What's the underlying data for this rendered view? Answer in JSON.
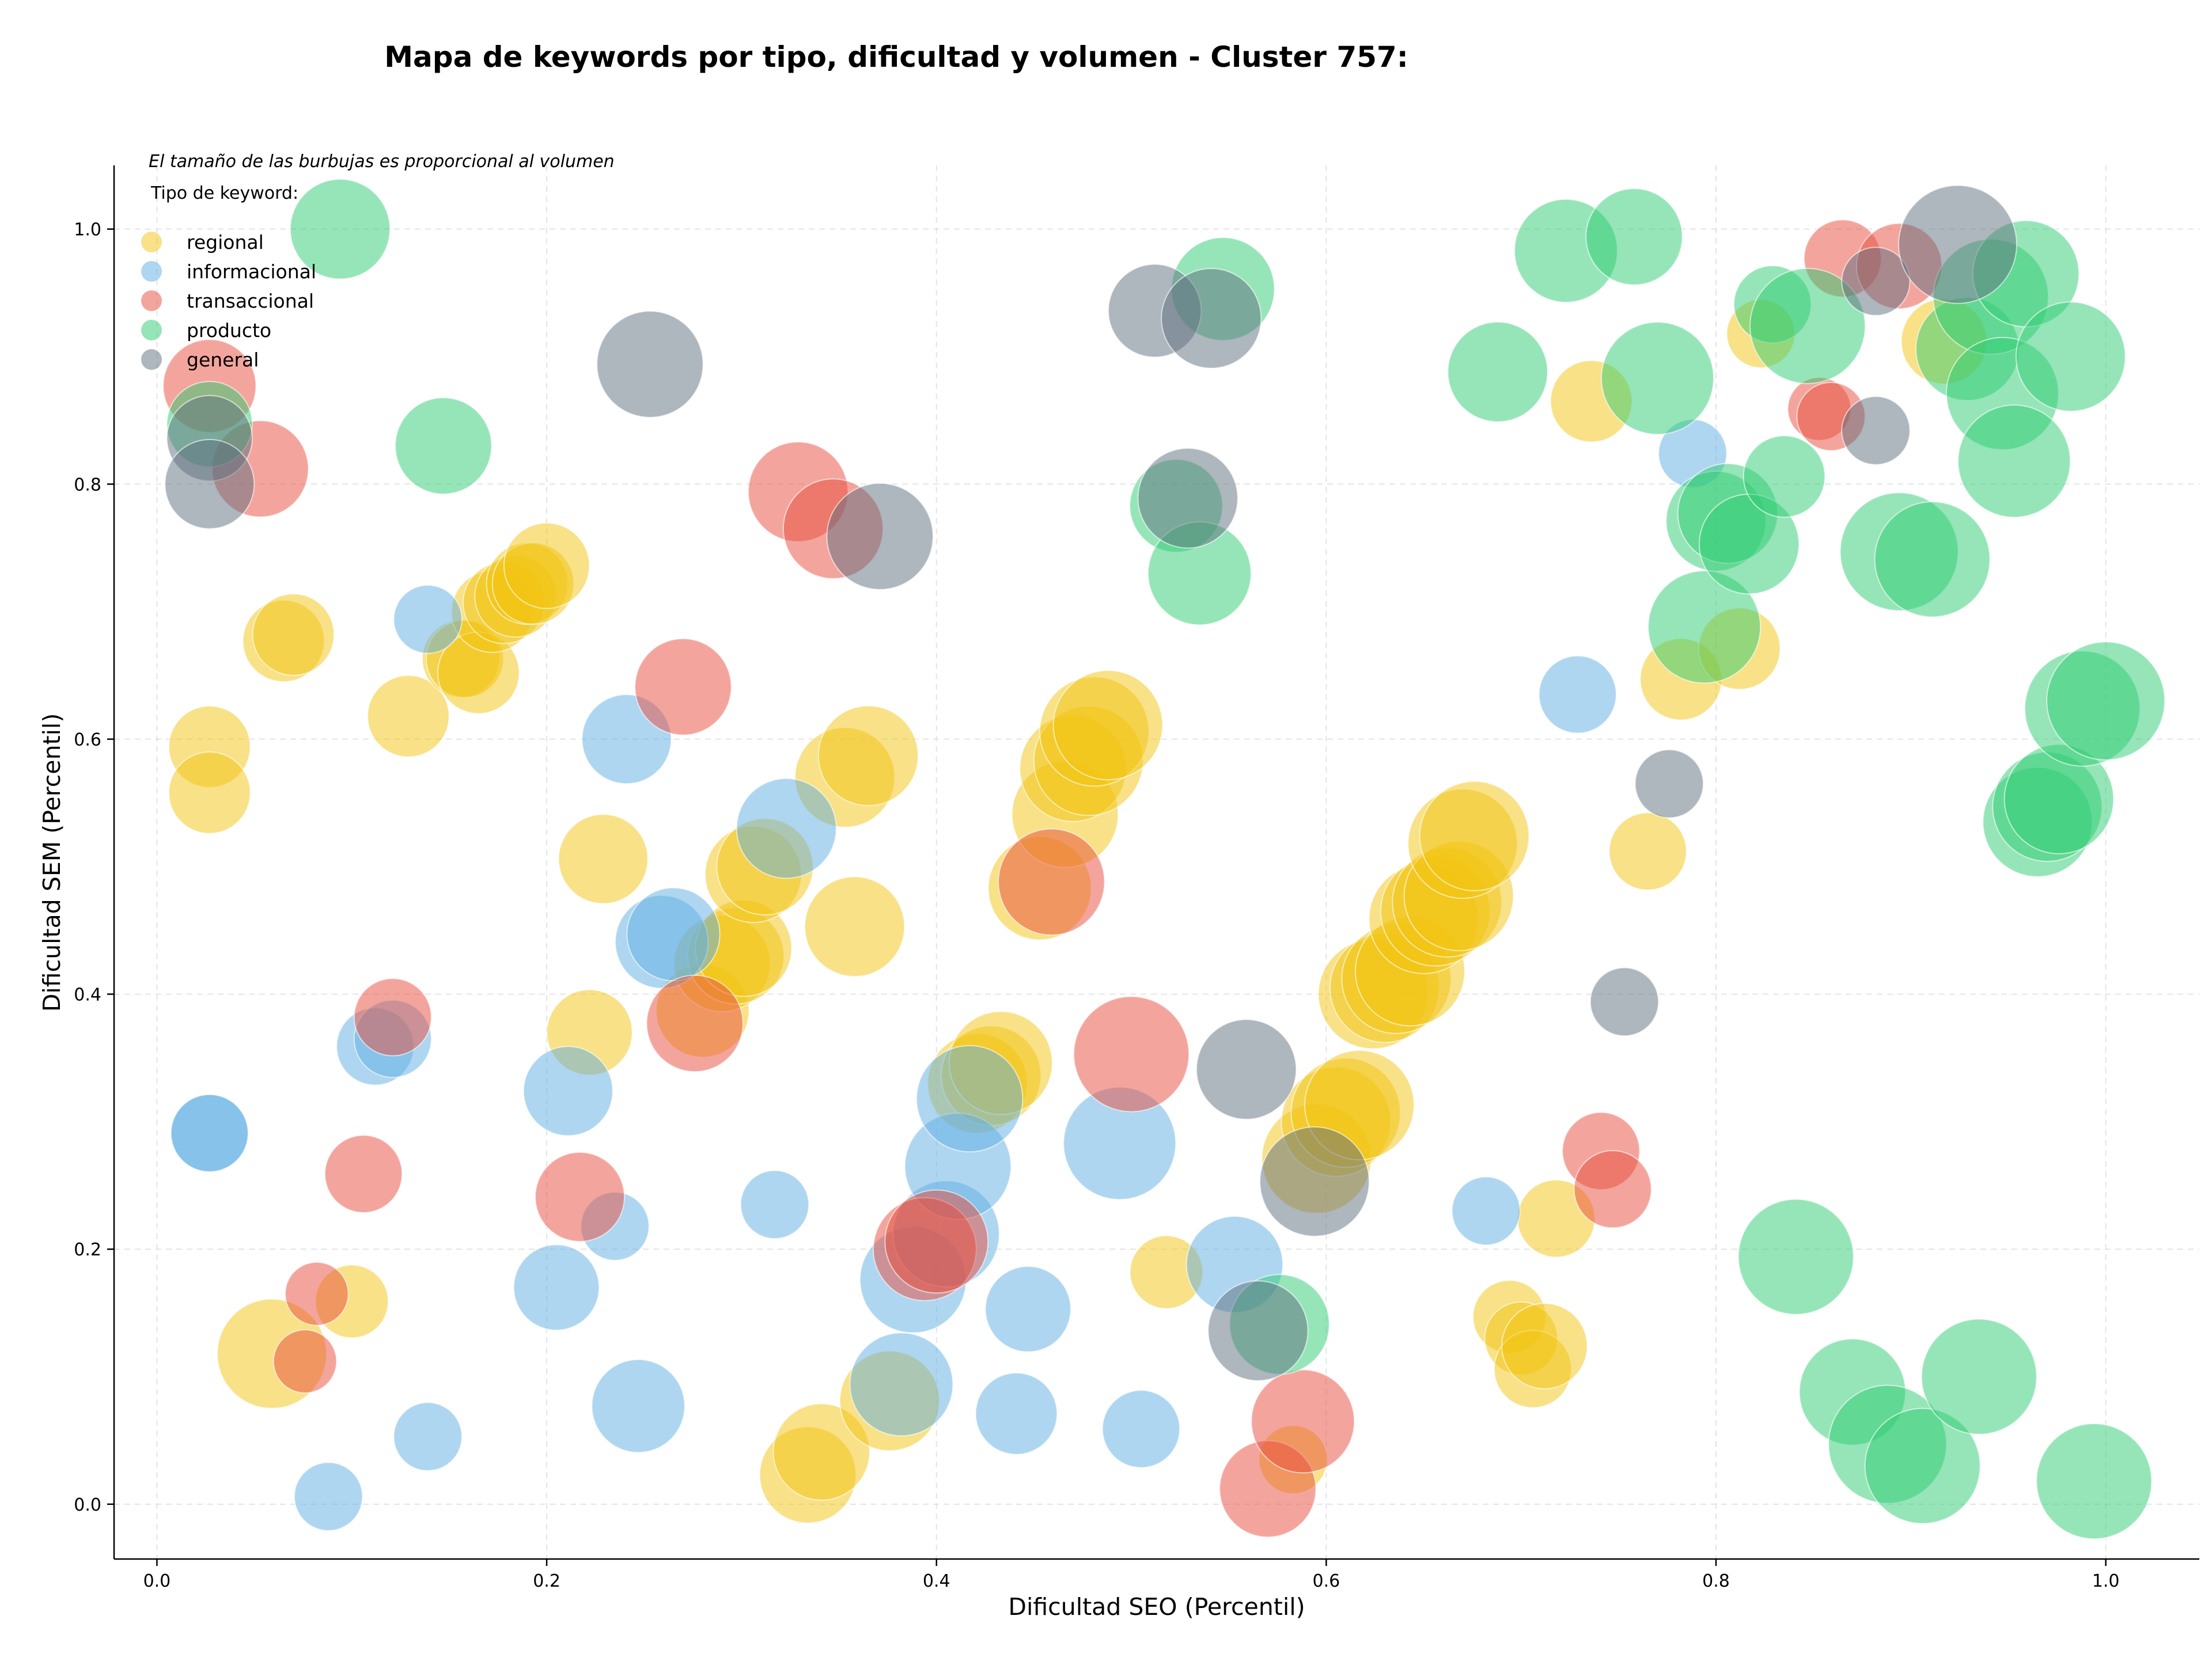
{
  "chart_data": {
    "type": "scatter",
    "title": "Mapa de keywords por tipo, dificultad y volumen - Cluster 757:",
    "xlabel": "Dificultad SEO (Percentil)",
    "ylabel": "Dificultad SEM (Percentil)",
    "annotation": "El tamaño de las burbujas es proporcional al volumen",
    "legend_title": "Tipo de keyword:",
    "legend_position": "top-left",
    "grid": true,
    "xlim": [
      -0.022,
      1.048
    ],
    "ylim": [
      -0.043,
      1.05
    ],
    "xticks": [
      "0.0",
      "0.2",
      "0.4",
      "0.6",
      "0.8",
      "1.0"
    ],
    "yticks": [
      "0.0",
      "0.2",
      "0.4",
      "0.6",
      "0.8",
      "1.0"
    ],
    "series": [
      {
        "name": "regional",
        "color": "#f1c40f",
        "points": [
          [
            0.027,
            0.594,
            50
          ],
          [
            0.027,
            0.558,
            50
          ],
          [
            0.065,
            0.677,
            50
          ],
          [
            0.07,
            0.682,
            50
          ],
          [
            0.059,
            0.118,
            90
          ],
          [
            0.1,
            0.159,
            40
          ],
          [
            0.129,
            0.618,
            50
          ],
          [
            0.156,
            0.663,
            45
          ],
          [
            0.158,
            0.663,
            45
          ],
          [
            0.165,
            0.652,
            50
          ],
          [
            0.172,
            0.7,
            50
          ],
          [
            0.178,
            0.707,
            50
          ],
          [
            0.184,
            0.712,
            50
          ],
          [
            0.19,
            0.722,
            50
          ],
          [
            0.193,
            0.722,
            50
          ],
          [
            0.2,
            0.736,
            55
          ],
          [
            0.222,
            0.37,
            55
          ],
          [
            0.229,
            0.506,
            60
          ],
          [
            0.28,
            0.387,
            65
          ],
          [
            0.29,
            0.424,
            70
          ],
          [
            0.297,
            0.43,
            70
          ],
          [
            0.301,
            0.436,
            70
          ],
          [
            0.306,
            0.494,
            70
          ],
          [
            0.312,
            0.5,
            70
          ],
          [
            0.334,
            0.023,
            70
          ],
          [
            0.341,
            0.041,
            70
          ],
          [
            0.353,
            0.57,
            75
          ],
          [
            0.358,
            0.453,
            75
          ],
          [
            0.365,
            0.587,
            75
          ],
          [
            0.376,
            0.081,
            75
          ],
          [
            0.421,
            0.33,
            75
          ],
          [
            0.428,
            0.336,
            75
          ],
          [
            0.433,
            0.346,
            80
          ],
          [
            0.453,
            0.483,
            80
          ],
          [
            0.466,
            0.541,
            85
          ],
          [
            0.47,
            0.577,
            85
          ],
          [
            0.478,
            0.583,
            90
          ],
          [
            0.481,
            0.606,
            90
          ],
          [
            0.488,
            0.611,
            90
          ],
          [
            0.518,
            0.182,
            40
          ],
          [
            0.583,
            0.035,
            35
          ],
          [
            0.595,
            0.271,
            90
          ],
          [
            0.605,
            0.3,
            90
          ],
          [
            0.61,
            0.307,
            90
          ],
          [
            0.617,
            0.313,
            90
          ],
          [
            0.624,
            0.4,
            90
          ],
          [
            0.63,
            0.405,
            90
          ],
          [
            0.636,
            0.412,
            90
          ],
          [
            0.643,
            0.418,
            90
          ],
          [
            0.65,
            0.459,
            90
          ],
          [
            0.656,
            0.465,
            90
          ],
          [
            0.662,
            0.472,
            90
          ],
          [
            0.668,
            0.477,
            90
          ],
          [
            0.67,
            0.518,
            90
          ],
          [
            0.676,
            0.524,
            90
          ],
          [
            0.694,
            0.147,
            40
          ],
          [
            0.7,
            0.13,
            40
          ],
          [
            0.706,
            0.106,
            45
          ],
          [
            0.712,
            0.124,
            55
          ],
          [
            0.718,
            0.224,
            45
          ],
          [
            0.736,
            0.865,
            50
          ],
          [
            0.765,
            0.512,
            45
          ],
          [
            0.782,
            0.647,
            50
          ],
          [
            0.812,
            0.671,
            50
          ],
          [
            0.823,
            0.918,
            35
          ],
          [
            0.917,
            0.912,
            55
          ]
        ]
      },
      {
        "name": "informacional",
        "color": "#5dade2",
        "points": [
          [
            0.027,
            0.291,
            45
          ],
          [
            0.027,
            0.291,
            45
          ],
          [
            0.088,
            0.006,
            35
          ],
          [
            0.112,
            0.359,
            45
          ],
          [
            0.121,
            0.365,
            45
          ],
          [
            0.139,
            0.694,
            35
          ],
          [
            0.139,
            0.053,
            35
          ],
          [
            0.205,
            0.17,
            55
          ],
          [
            0.211,
            0.324,
            60
          ],
          [
            0.235,
            0.218,
            35
          ],
          [
            0.241,
            0.6,
            60
          ],
          [
            0.247,
            0.077,
            65
          ],
          [
            0.259,
            0.441,
            65
          ],
          [
            0.265,
            0.447,
            65
          ],
          [
            0.317,
            0.235,
            35
          ],
          [
            0.323,
            0.53,
            75
          ],
          [
            0.382,
            0.094,
            80
          ],
          [
            0.388,
            0.176,
            85
          ],
          [
            0.405,
            0.212,
            85
          ],
          [
            0.411,
            0.265,
            85
          ],
          [
            0.417,
            0.318,
            85
          ],
          [
            0.441,
            0.071,
            50
          ],
          [
            0.447,
            0.153,
            55
          ],
          [
            0.494,
            0.283,
            95
          ],
          [
            0.505,
            0.059,
            45
          ],
          [
            0.553,
            0.188,
            70
          ],
          [
            0.682,
            0.23,
            35
          ],
          [
            0.729,
            0.635,
            45
          ],
          [
            0.788,
            0.824,
            35
          ]
        ]
      },
      {
        "name": "transaccional",
        "color": "#e74c3c",
        "points": [
          [
            0.027,
            0.877,
            65
          ],
          [
            0.053,
            0.812,
            70
          ],
          [
            0.076,
            0.112,
            30
          ],
          [
            0.082,
            0.165,
            30
          ],
          [
            0.106,
            0.259,
            45
          ],
          [
            0.121,
            0.382,
            45
          ],
          [
            0.217,
            0.241,
            60
          ],
          [
            0.27,
            0.641,
            70
          ],
          [
            0.276,
            0.377,
            70
          ],
          [
            0.329,
            0.794,
            75
          ],
          [
            0.347,
            0.765,
            75
          ],
          [
            0.394,
            0.2,
            80
          ],
          [
            0.4,
            0.206,
            80
          ],
          [
            0.459,
            0.488,
            85
          ],
          [
            0.5,
            0.353,
            100
          ],
          [
            0.57,
            0.012,
            70
          ],
          [
            0.588,
            0.065,
            80
          ],
          [
            0.741,
            0.277,
            45
          ],
          [
            0.747,
            0.247,
            45
          ],
          [
            0.853,
            0.859,
            30
          ],
          [
            0.859,
            0.853,
            35
          ],
          [
            0.865,
            0.977,
            45
          ],
          [
            0.894,
            0.971,
            55
          ]
        ]
      },
      {
        "name": "producto",
        "color": "#2ecc71",
        "points": [
          [
            0.027,
            0.847,
            55
          ],
          [
            0.094,
            1.0,
            75
          ],
          [
            0.147,
            0.83,
            70
          ],
          [
            0.523,
            0.783,
            65
          ],
          [
            0.535,
            0.73,
            80
          ],
          [
            0.547,
            0.953,
            80
          ],
          [
            0.576,
            0.141,
            75
          ],
          [
            0.688,
            0.888,
            75
          ],
          [
            0.723,
            0.983,
            80
          ],
          [
            0.758,
            0.994,
            70
          ],
          [
            0.77,
            0.883,
            95
          ],
          [
            0.794,
            0.688,
            95
          ],
          [
            0.8,
            0.771,
            75
          ],
          [
            0.806,
            0.777,
            75
          ],
          [
            0.817,
            0.753,
            75
          ],
          [
            0.829,
            0.941,
            45
          ],
          [
            0.835,
            0.806,
            50
          ],
          [
            0.841,
            0.194,
            100
          ],
          [
            0.847,
            0.924,
            100
          ],
          [
            0.87,
            0.088,
            85
          ],
          [
            0.888,
            0.047,
            105
          ],
          [
            0.894,
            0.747,
            105
          ],
          [
            0.906,
            0.03,
            100
          ],
          [
            0.911,
            0.741,
            100
          ],
          [
            0.929,
            0.906,
            80
          ],
          [
            0.935,
            0.1,
            100
          ],
          [
            0.941,
            0.947,
            100
          ],
          [
            0.947,
            0.871,
            95
          ],
          [
            0.953,
            0.818,
            95
          ],
          [
            0.959,
            0.965,
            85
          ],
          [
            0.965,
            0.535,
            90
          ],
          [
            0.97,
            0.547,
            90
          ],
          [
            0.976,
            0.553,
            90
          ],
          [
            0.982,
            0.9,
            90
          ],
          [
            0.988,
            0.624,
            100
          ],
          [
            0.994,
            0.018,
            100
          ],
          [
            1.0,
            0.63,
            105
          ]
        ]
      },
      {
        "name": "general",
        "color": "#5d6d7e",
        "points": [
          [
            0.027,
            0.836,
            55
          ],
          [
            0.027,
            0.8,
            60
          ],
          [
            0.253,
            0.894,
            85
          ],
          [
            0.371,
            0.759,
            85
          ],
          [
            0.512,
            0.936,
            65
          ],
          [
            0.529,
            0.789,
            75
          ],
          [
            0.541,
            0.93,
            75
          ],
          [
            0.559,
            0.341,
            75
          ],
          [
            0.565,
            0.136,
            75
          ],
          [
            0.594,
            0.253,
            90
          ],
          [
            0.753,
            0.394,
            35
          ],
          [
            0.776,
            0.565,
            35
          ],
          [
            0.882,
            0.959,
            35
          ],
          [
            0.882,
            0.842,
            35
          ],
          [
            0.924,
            0.988,
            105
          ]
        ]
      }
    ]
  }
}
